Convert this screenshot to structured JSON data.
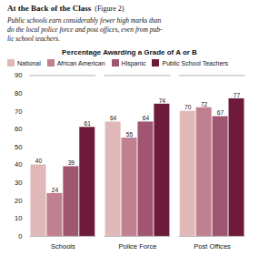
{
  "chart_data": {
    "type": "bar",
    "title": "At the Back of the Class",
    "subtitle": "Public schools earn considerably fewer high marks than\ndo the local police force and post offices, even from pub-\nlic school teachers.",
    "annotations": [
      "(Figure 2)",
      "Percentage Awarding a Grade of A or B"
    ],
    "categories": [
      "Schools",
      "Police Force",
      "Post Offices"
    ],
    "series": [
      {
        "name": "National",
        "color": "#e0b8b8",
        "values": [
          40,
          64,
          70
        ]
      },
      {
        "name": "African American",
        "color": "#c08090",
        "values": [
          24,
          55,
          72
        ]
      },
      {
        "name": "Hispanic",
        "color": "#a05570",
        "values": [
          39,
          64,
          67
        ]
      },
      {
        "name": "Public School Teachers",
        "color": "#6e1a3a",
        "values": [
          61,
          74,
          77
        ]
      }
    ],
    "ylim": [
      0,
      90
    ],
    "yticks": [
      0,
      10,
      20,
      30,
      40,
      50,
      60,
      70,
      80,
      90
    ],
    "grid": false,
    "legend": "top",
    "data_labels": true
  }
}
